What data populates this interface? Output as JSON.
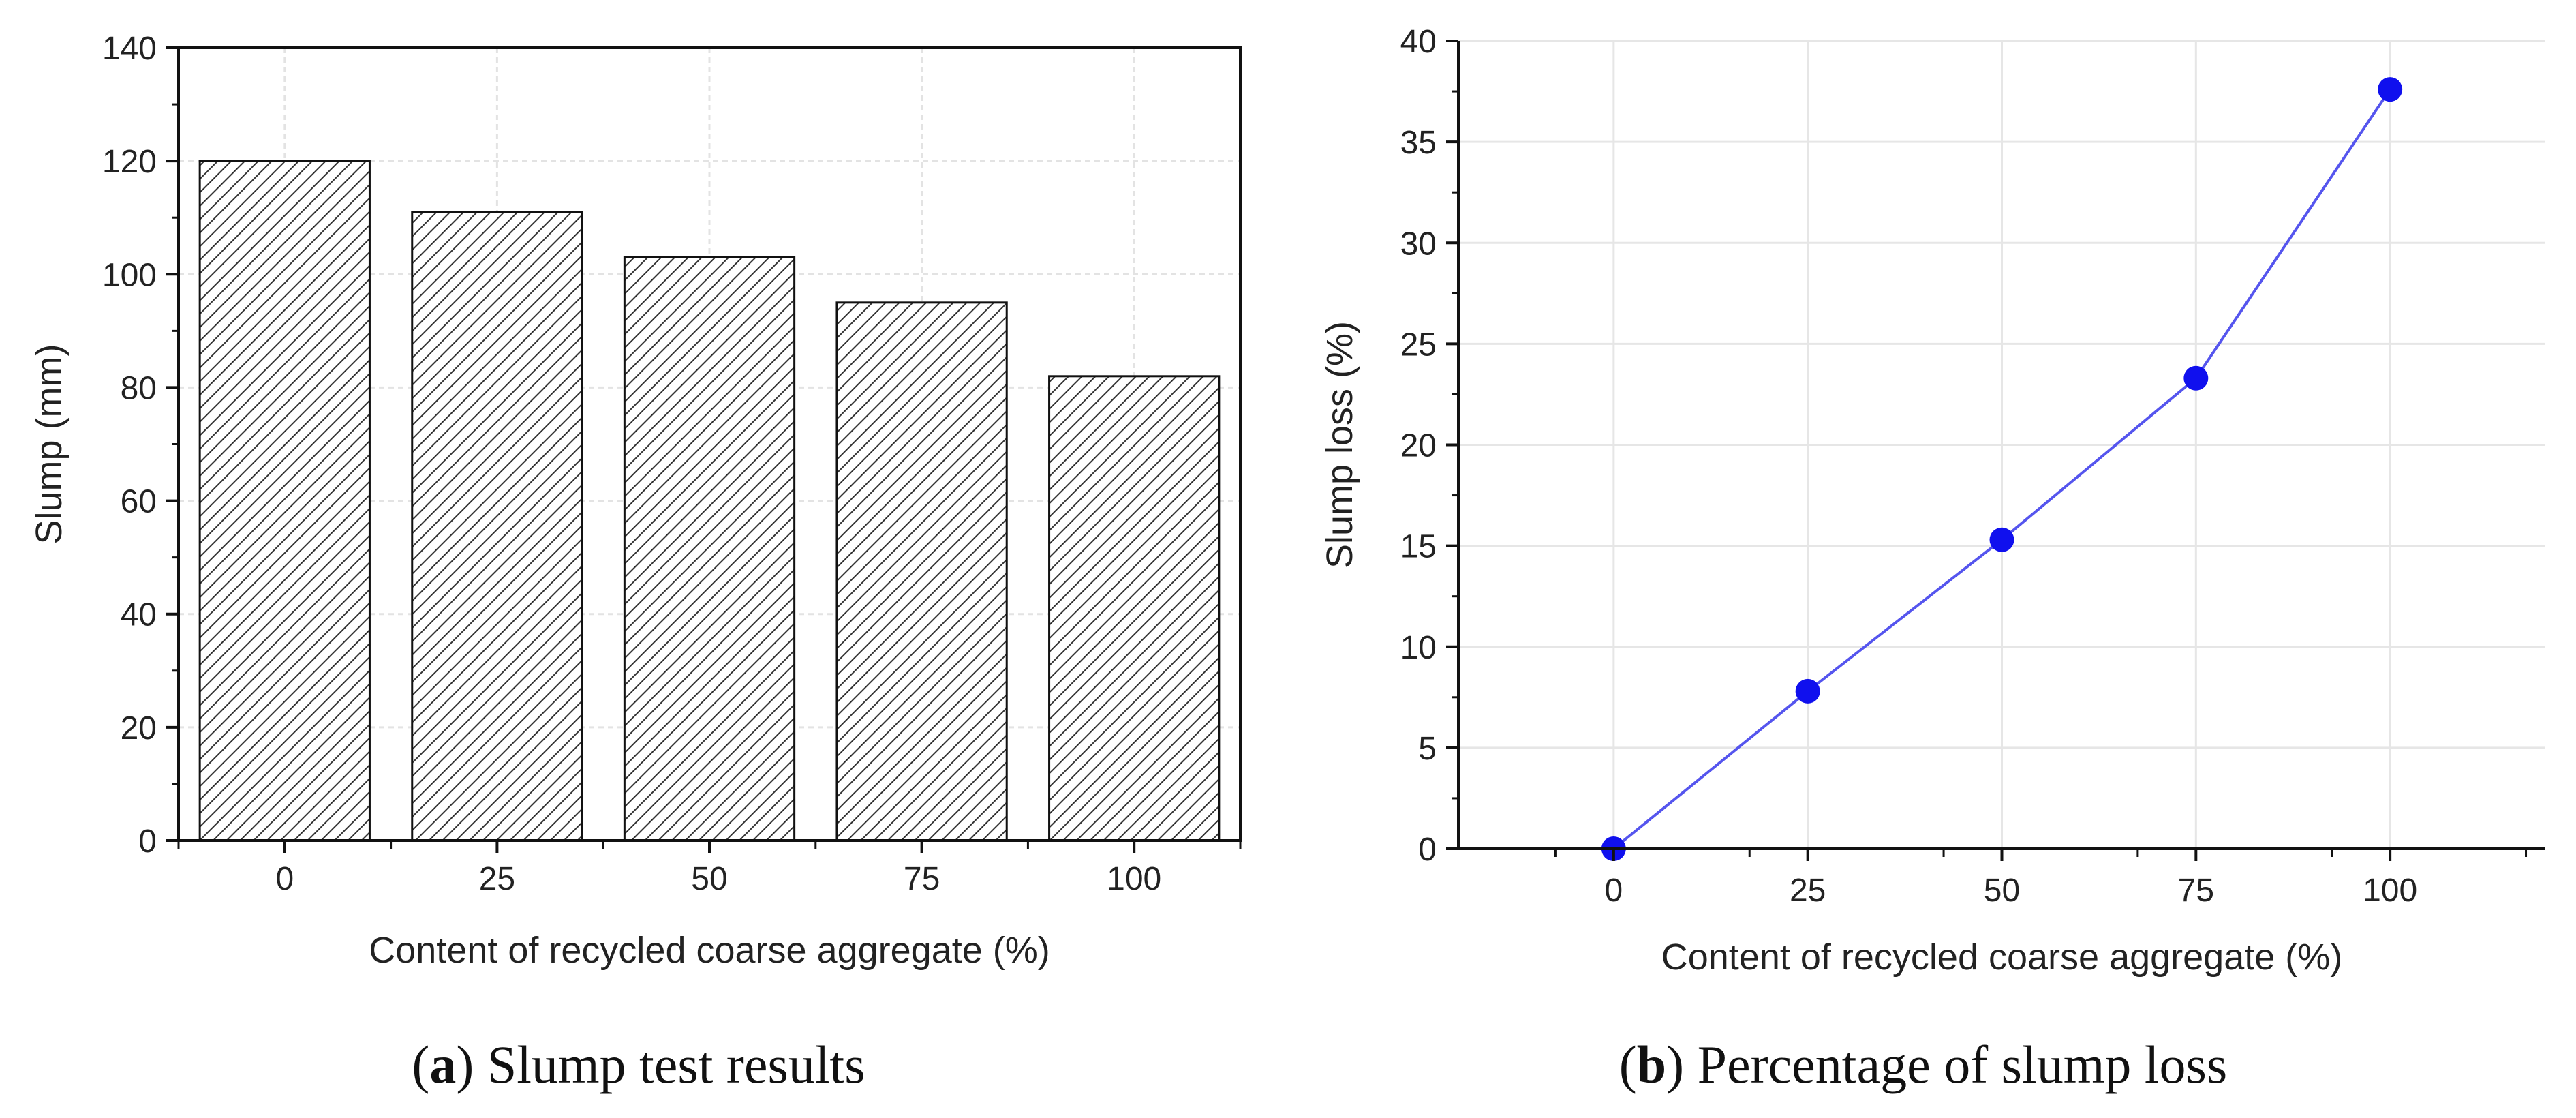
{
  "chart_data": [
    {
      "type": "bar",
      "categories": [
        "0",
        "25",
        "50",
        "75",
        "100"
      ],
      "values": [
        120,
        111,
        103,
        95,
        82
      ],
      "xlabel": "Content of recycled coarse aggregate (%)",
      "ylabel": "Slump (mm)",
      "ylim": [
        0,
        140
      ],
      "yticks": [
        0,
        20,
        40,
        60,
        80,
        100,
        120,
        140
      ],
      "grid": true,
      "bar_fill": "hatched",
      "caption_letter": "a",
      "caption_text": ") Slump test results",
      "caption_open": "("
    },
    {
      "type": "line",
      "x": [
        0,
        25,
        50,
        75,
        100
      ],
      "y": [
        0,
        7.8,
        15.3,
        23.3,
        37.6
      ],
      "xlabel": "Content of recycled coarse aggregate (%)",
      "ylabel": "Slump loss (%)",
      "xticks": [
        0,
        25,
        50,
        75,
        100
      ],
      "xlim": [
        -20,
        120
      ],
      "ylim": [
        0,
        40
      ],
      "yticks": [
        0,
        5,
        10,
        15,
        20,
        25,
        30,
        35,
        40
      ],
      "grid": true,
      "line_color": "#5555ee",
      "marker_color": "#1010ee",
      "caption_letter": "b",
      "caption_text": ") Percentage of slump loss",
      "caption_open": "("
    }
  ]
}
